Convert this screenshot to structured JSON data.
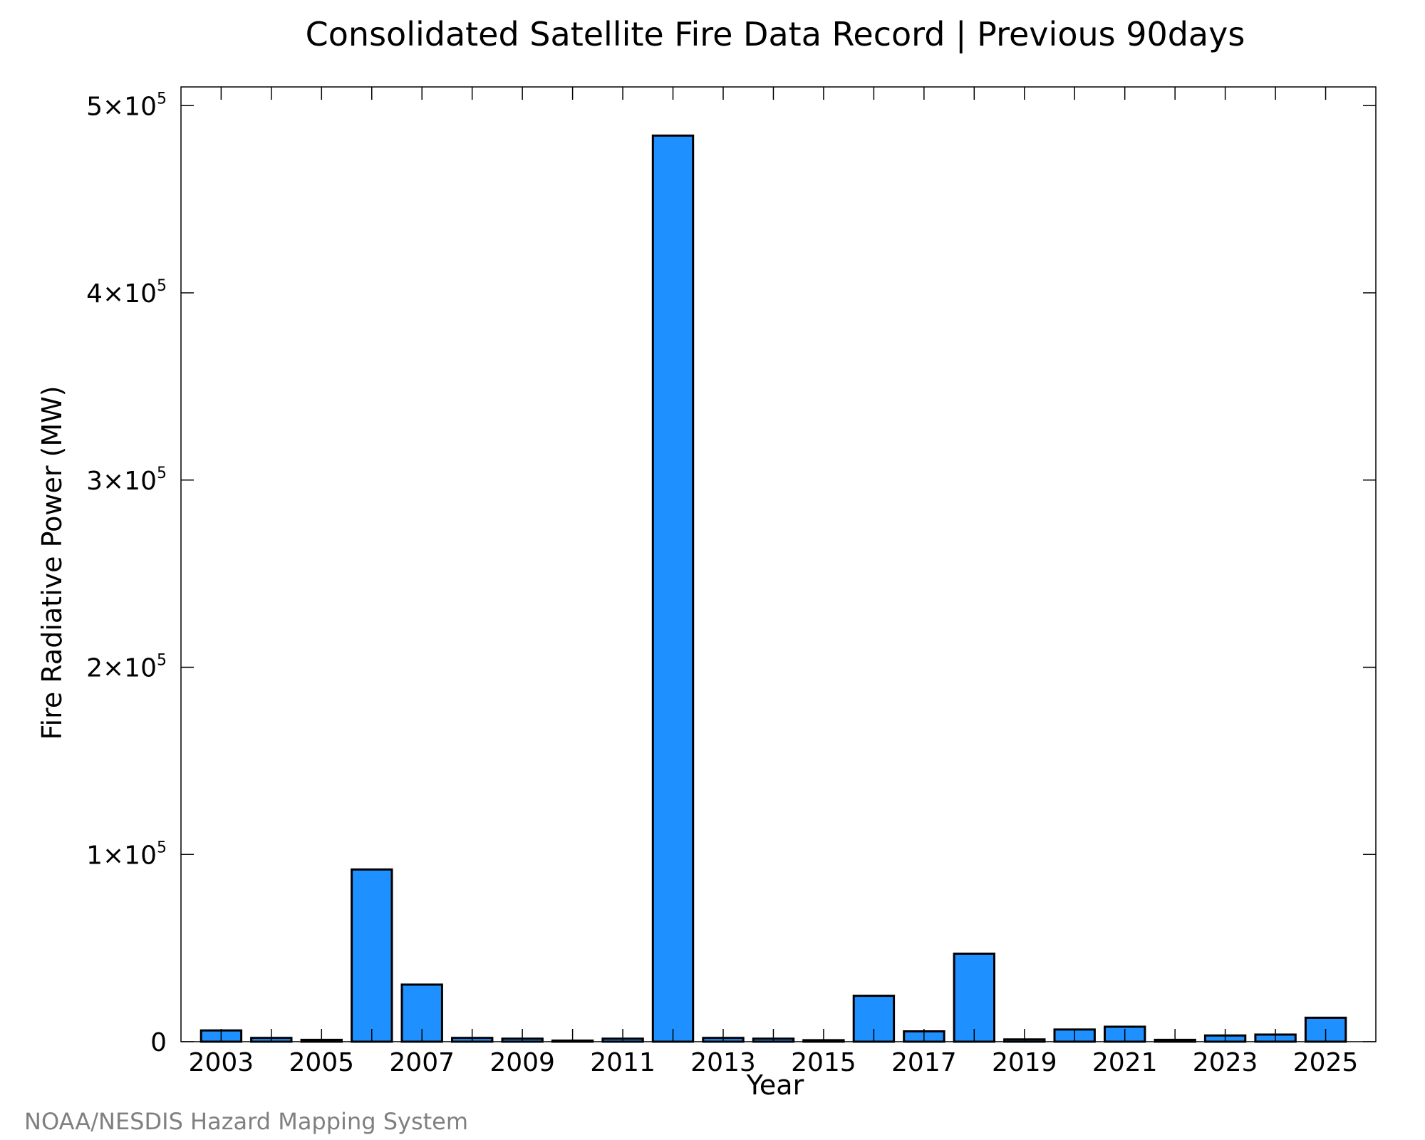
{
  "footer": {
    "credit": "NOAA/NESDIS Hazard Mapping System"
  },
  "chart_data": {
    "type": "bar",
    "title": "Consolidated Satellite Fire Data Record | Previous 90days",
    "xlabel": "Year",
    "ylabel": "Fire Radiative Power (MW)",
    "categories": [
      "2003",
      "2004",
      "2005",
      "2006",
      "2007",
      "2008",
      "2009",
      "2010",
      "2011",
      "2012",
      "2013",
      "2014",
      "2015",
      "2016",
      "2017",
      "2018",
      "2019",
      "2020",
      "2021",
      "2022",
      "2023",
      "2024",
      "2025"
    ],
    "values": [
      6000,
      2000,
      1000,
      92000,
      30500,
      2000,
      1600,
      300,
      1600,
      484000,
      2000,
      1600,
      800,
      24500,
      5500,
      47000,
      1200,
      6500,
      8000,
      1000,
      3300,
      3800,
      12800
    ],
    "ylim": [
      0,
      500000
    ],
    "xlim": [
      2002.2,
      2026
    ],
    "yticks": [
      {
        "value": 0,
        "label": "0"
      },
      {
        "value": 100000,
        "mantissa": "1×10",
        "exponent": "5"
      },
      {
        "value": 200000,
        "mantissa": "2×10",
        "exponent": "5"
      },
      {
        "value": 300000,
        "mantissa": "3×10",
        "exponent": "5"
      },
      {
        "value": 400000,
        "mantissa": "4×10",
        "exponent": "5"
      },
      {
        "value": 500000,
        "mantissa": "5×10",
        "exponent": "5"
      }
    ],
    "xticks_labeled": [
      "2003",
      "2005",
      "2007",
      "2009",
      "2011",
      "2013",
      "2015",
      "2017",
      "2019",
      "2021",
      "2023",
      "2025"
    ],
    "grid": false,
    "bar_color": "#1E90FF",
    "edge_color": "#000000"
  }
}
